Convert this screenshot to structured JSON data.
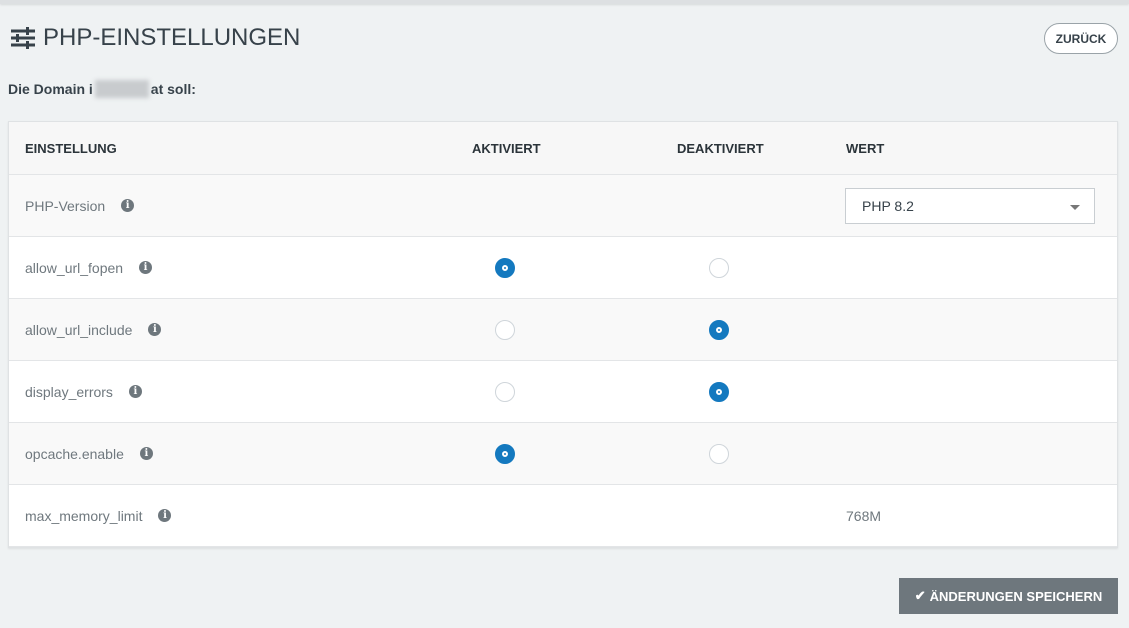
{
  "page": {
    "title": "PHP-EINSTELLUNGEN",
    "title_icon": "sliders-icon",
    "back_label": "ZURÜCK",
    "domain_prefix": "Die Domain i",
    "domain_suffix": "at soll:"
  },
  "table": {
    "headers": {
      "setting": "EINSTELLUNG",
      "enabled": "AKTIVIERT",
      "disabled": "DEAKTIVIERT",
      "value": "WERT"
    },
    "rows": [
      {
        "name": "PHP-Version",
        "type": "select",
        "value": "PHP 8.2"
      },
      {
        "name": "allow_url_fopen",
        "type": "radio",
        "enabled": true
      },
      {
        "name": "allow_url_include",
        "type": "radio",
        "enabled": false
      },
      {
        "name": "display_errors",
        "type": "radio",
        "enabled": false
      },
      {
        "name": "opcache.enable",
        "type": "radio",
        "enabled": true
      },
      {
        "name": "max_memory_limit",
        "type": "text",
        "value": "768M"
      }
    ]
  },
  "save_label": "ÄNDERUNGEN SPEICHERN",
  "colors": {
    "accent": "#1479bf",
    "save_button": "#6e777d"
  }
}
